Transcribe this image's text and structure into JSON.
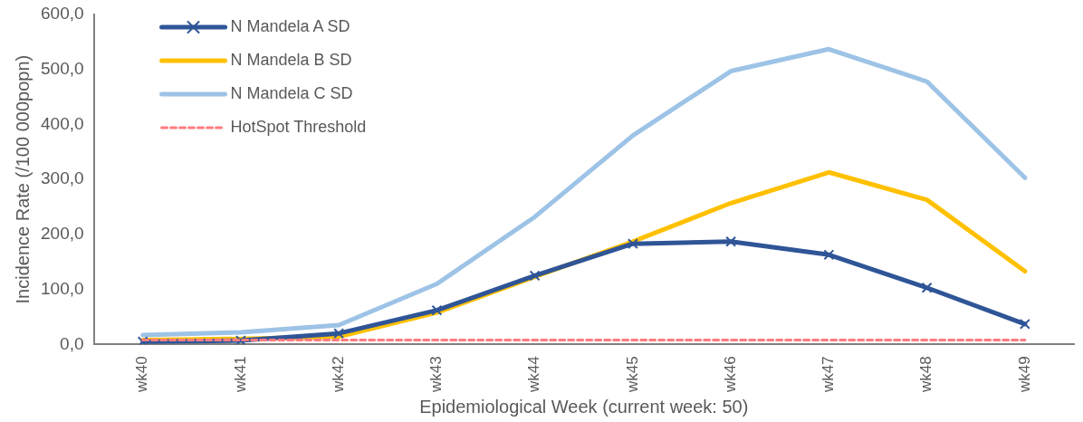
{
  "chart_data": {
    "type": "line",
    "xlabel": "Epidemiological Week (current week: 50)",
    "ylabel": "Incidence Rate (/100 000popn)",
    "categories": [
      "wk40",
      "wk41",
      "wk42",
      "wk43",
      "wk44",
      "wk45",
      "wk46",
      "wk47",
      "wk48",
      "wk49"
    ],
    "ylim": [
      0,
      600
    ],
    "yticks": [
      {
        "value": 0,
        "label": "0,0"
      },
      {
        "value": 100,
        "label": "100,0"
      },
      {
        "value": 200,
        "label": "200,0"
      },
      {
        "value": 300,
        "label": "300,0"
      },
      {
        "value": 400,
        "label": "400,0"
      },
      {
        "value": 500,
        "label": "500,0"
      },
      {
        "value": 600,
        "label": "600,0"
      }
    ],
    "grid": false,
    "legend": "top left",
    "series": [
      {
        "name": "N Mandela A SD",
        "color": "#2f5597",
        "marker": "cross",
        "values": [
          5,
          7,
          20,
          62,
          125,
          183,
          187,
          163,
          103,
          37
        ]
      },
      {
        "name": "N Mandela B SD",
        "color": "#ffc000",
        "marker": "none",
        "values": [
          8,
          10,
          14,
          58,
          123,
          187,
          257,
          313,
          263,
          133
        ]
      },
      {
        "name": "N Mandela C SD",
        "color": "#9dc3e6",
        "marker": "none",
        "values": [
          17,
          22,
          35,
          110,
          232,
          380,
          497,
          537,
          478,
          303
        ]
      },
      {
        "name": "HotSpot Threshold",
        "color": "#ff7c80",
        "marker": "none",
        "line_style": "dashed",
        "values": [
          8,
          8,
          8,
          8,
          8,
          8,
          8,
          8,
          8,
          8
        ]
      }
    ]
  }
}
